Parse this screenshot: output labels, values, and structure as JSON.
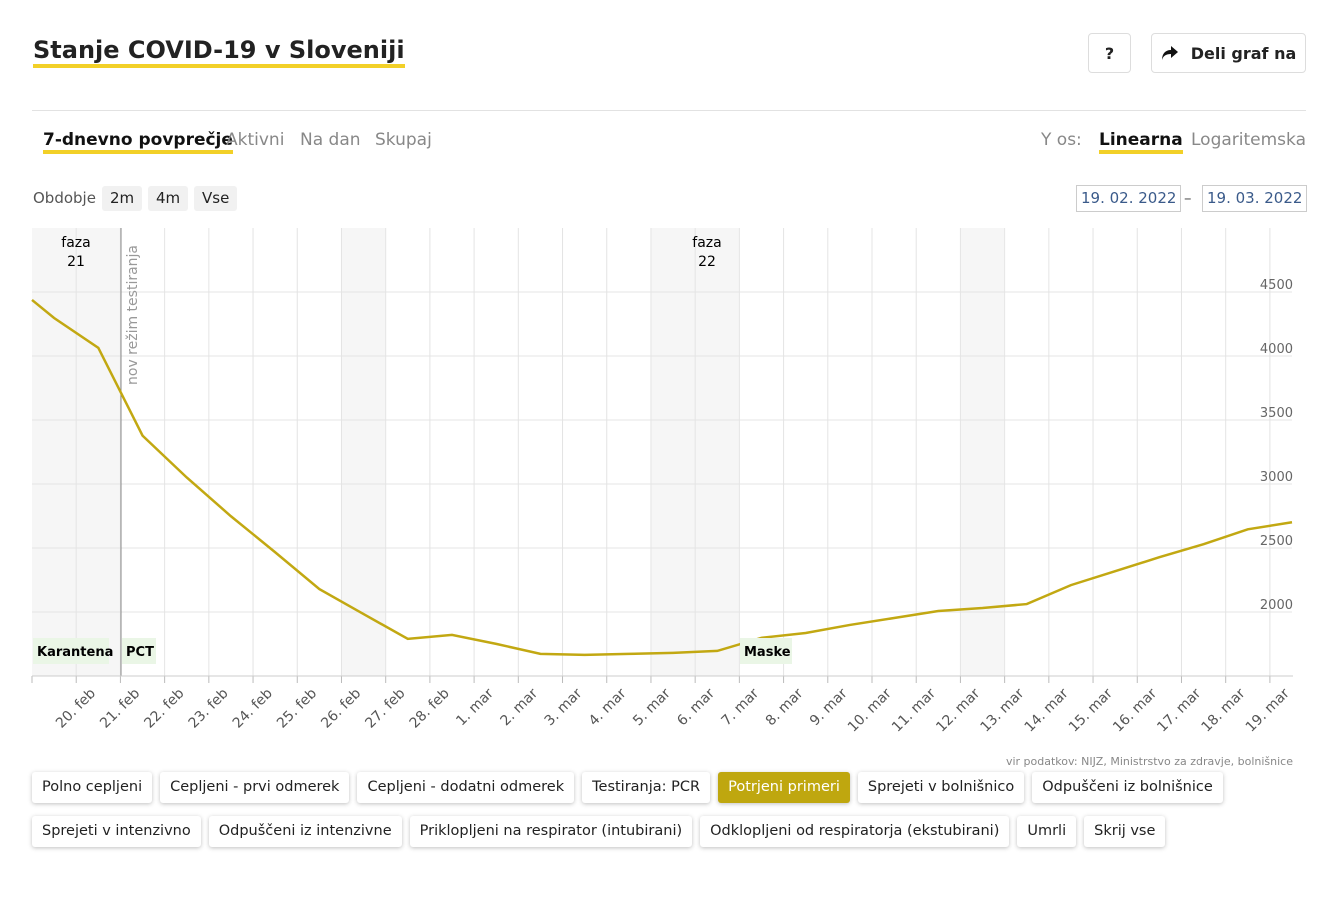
{
  "header": {
    "title": "Stanje COVID-19 v Sloveniji",
    "help": "?",
    "share": "Deli graf na"
  },
  "tabs": [
    "7-dnevno povprečje",
    "Aktivni",
    "Na dan",
    "Skupaj"
  ],
  "scale": {
    "label": "Y os:",
    "options": [
      "Linearna",
      "Logaritemska"
    ]
  },
  "period": {
    "label": "Obdobje",
    "options": [
      "2m",
      "4m",
      "Vse"
    ],
    "from": "19. 02. 2022",
    "separator": "–",
    "to": "19. 03. 2022"
  },
  "annotations": {
    "phases": [
      {
        "label": "faza",
        "number": "21"
      },
      {
        "label": "faza",
        "number": "22"
      }
    ],
    "testing": "nov režim testiranja",
    "events": [
      "Karantena",
      "PCT",
      "Maske"
    ]
  },
  "source": "vir podatkov: NIJZ, Ministrstvo za zdravje, bolnišnice",
  "buttons": [
    [
      "Polno cepljeni",
      "Cepljeni - prvi odmerek",
      "Cepljeni - dodatni odmerek",
      "Testiranja: PCR",
      "Potrjeni primeri",
      "Sprejeti v bolnišnico",
      "Odpuščeni iz bolnišnice"
    ],
    [
      "Sprejeti v intenzivno",
      "Odpuščeni iz intenzivne",
      "Priklopljeni na respirator (intubirani)",
      "Odklopljeni od respiratorja (ekstubirani)",
      "Umrli",
      "Skrij vse"
    ]
  ],
  "active_button": "Potrjeni primeri",
  "chart_data": {
    "type": "line",
    "xlim": [
      0,
      28.5
    ],
    "xticks": [
      {
        "value": 1,
        "label": "20. feb"
      },
      {
        "value": 2,
        "label": "21. feb"
      },
      {
        "value": 3,
        "label": "22. feb"
      },
      {
        "value": 4,
        "label": "23. feb"
      },
      {
        "value": 5,
        "label": "24. feb"
      },
      {
        "value": 6,
        "label": "25. feb"
      },
      {
        "value": 7,
        "label": "26. feb"
      },
      {
        "value": 8,
        "label": "27. feb"
      },
      {
        "value": 9,
        "label": "28. feb"
      },
      {
        "value": 10,
        "label": "1. mar"
      },
      {
        "value": 11,
        "label": "2. mar"
      },
      {
        "value": 12,
        "label": "3. mar"
      },
      {
        "value": 13,
        "label": "4. mar"
      },
      {
        "value": 14,
        "label": "5. mar"
      },
      {
        "value": 15,
        "label": "6. mar"
      },
      {
        "value": 16,
        "label": "7. mar"
      },
      {
        "value": 17,
        "label": "8. mar"
      },
      {
        "value": 18,
        "label": "9. mar"
      },
      {
        "value": 19,
        "label": "10. mar"
      },
      {
        "value": 20,
        "label": "11. mar"
      },
      {
        "value": 21,
        "label": "12. mar"
      },
      {
        "value": 22,
        "label": "13. mar"
      },
      {
        "value": 23,
        "label": "14. mar"
      },
      {
        "value": 24,
        "label": "15. mar"
      },
      {
        "value": 25,
        "label": "16. mar"
      },
      {
        "value": 26,
        "label": "17. mar"
      },
      {
        "value": 27,
        "label": "18. mar"
      },
      {
        "value": 28,
        "label": "19. mar"
      }
    ],
    "ylim": [
      1500,
      5000
    ],
    "yticks": [
      2000,
      2500,
      3000,
      3500,
      4000,
      4500
    ],
    "grid": true,
    "series": [
      {
        "name": "Potrjeni primeri",
        "color": "#c2a812",
        "x": [
          0,
          0.5,
          1.5,
          2.5,
          3.5,
          4.5,
          5.5,
          6.5,
          7.5,
          8.5,
          9.5,
          10.5,
          11.5,
          12.5,
          13.5,
          14.5,
          15.5,
          16.5,
          17.5,
          18.5,
          19.5,
          20.5,
          21.5,
          22.5,
          23.5,
          24.5,
          25.5,
          26.5,
          27.5,
          28.5
        ],
        "values": [
          4438,
          4297,
          4064,
          3378,
          3051,
          2748,
          2467,
          2179,
          1984,
          1790,
          1821,
          1751,
          1673,
          1665,
          1673,
          1681,
          1696,
          1798,
          1836,
          1899,
          1953,
          2008,
          2031,
          2062,
          2210,
          2319,
          2428,
          2530,
          2646,
          2701
        ]
      }
    ]
  }
}
